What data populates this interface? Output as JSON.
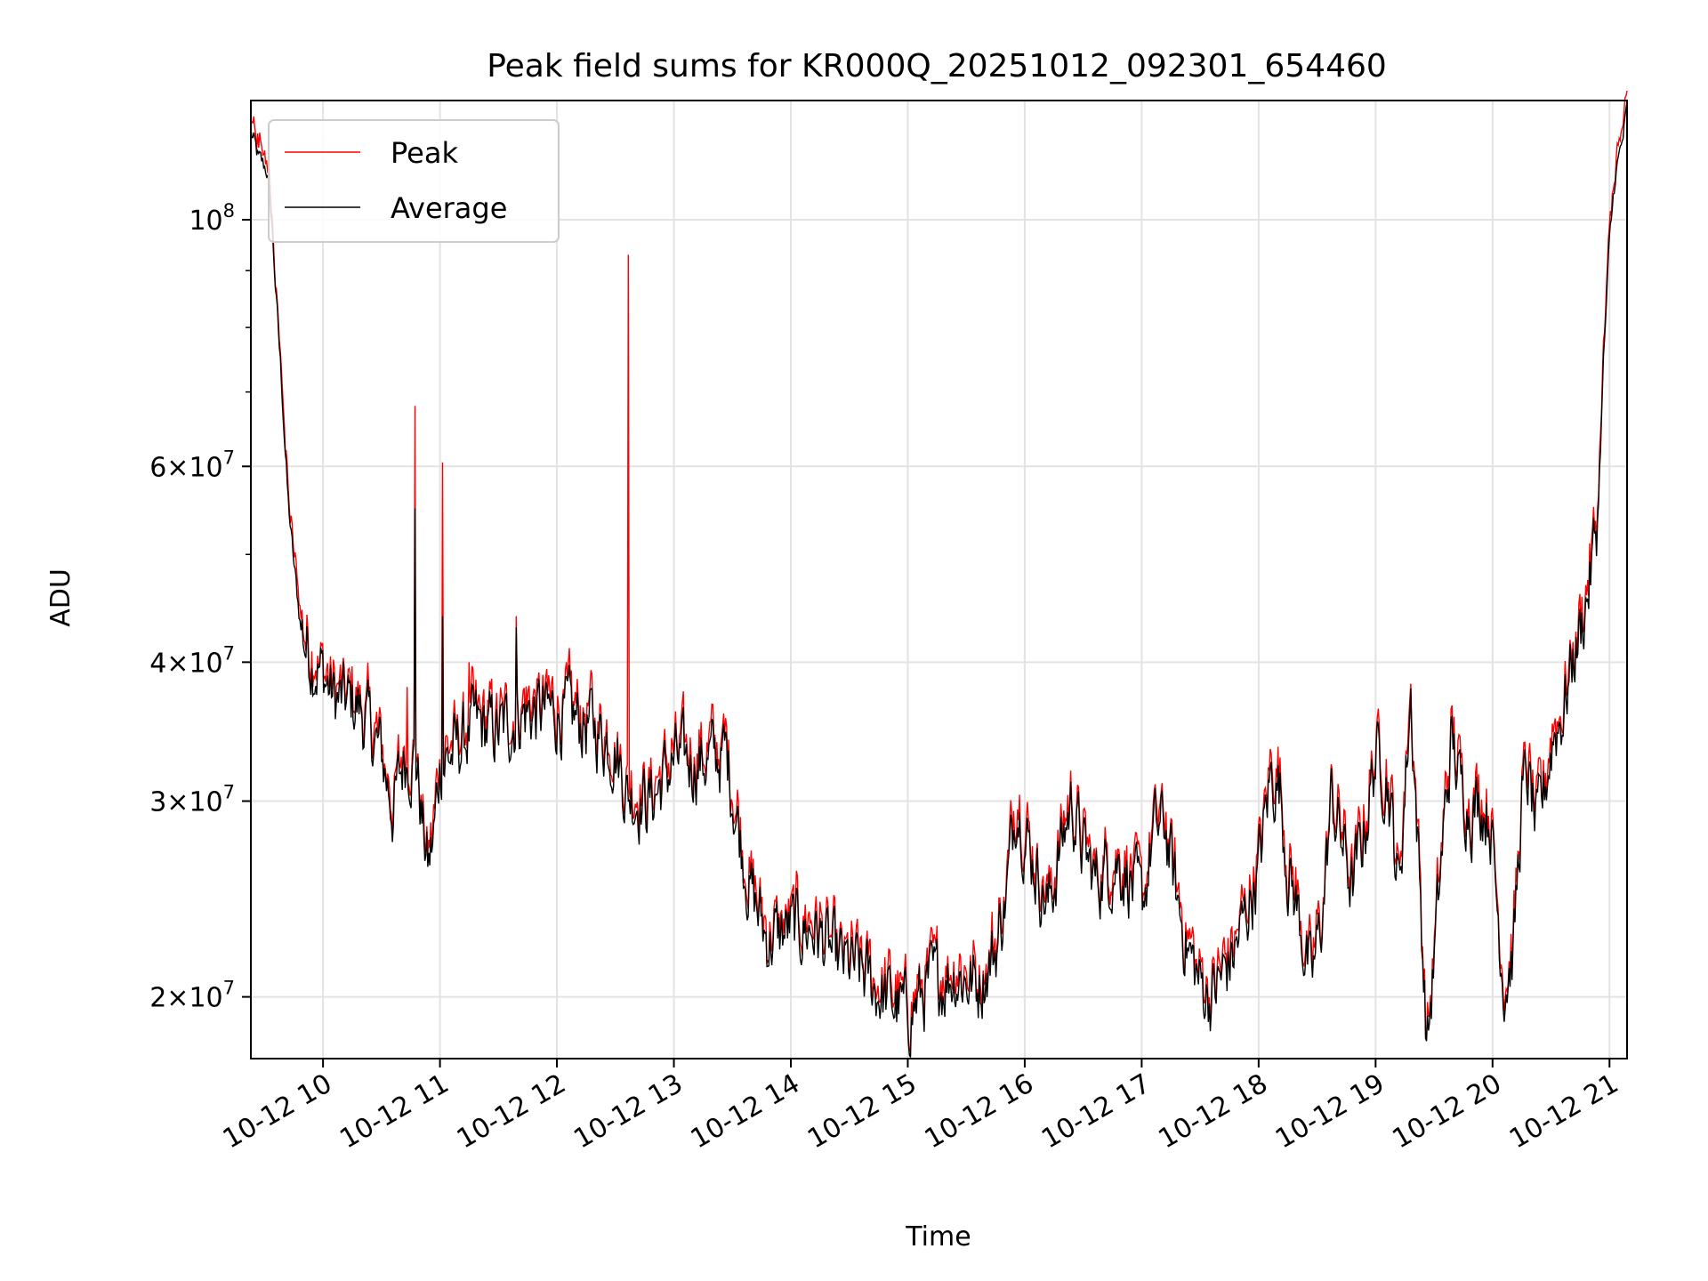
{
  "chart_data": {
    "type": "line",
    "title": "Peak field sums for KR000Q_20251012_092301_654460",
    "xlabel": "Time",
    "ylabel": "ADU",
    "yscale": "log",
    "xlim_hours": [
      9.383,
      21.15
    ],
    "ylim": [
      17600000,
      128000000
    ],
    "grid": true,
    "legend_position": "upper-left",
    "x_ticks": [
      {
        "value": 10,
        "label": "10-12 10"
      },
      {
        "value": 11,
        "label": "10-12 11"
      },
      {
        "value": 12,
        "label": "10-12 12"
      },
      {
        "value": 13,
        "label": "10-12 13"
      },
      {
        "value": 14,
        "label": "10-12 14"
      },
      {
        "value": 15,
        "label": "10-12 15"
      },
      {
        "value": 16,
        "label": "10-12 16"
      },
      {
        "value": 17,
        "label": "10-12 17"
      },
      {
        "value": 18,
        "label": "10-12 18"
      },
      {
        "value": 19,
        "label": "10-12 19"
      },
      {
        "value": 20,
        "label": "10-12 20"
      },
      {
        "value": 21,
        "label": "10-12 21"
      }
    ],
    "y_ticks": [
      {
        "value": 20000000,
        "mant": "2",
        "exp": "7"
      },
      {
        "value": 30000000,
        "mant": "3",
        "exp": "7"
      },
      {
        "value": 40000000,
        "mant": "4",
        "exp": "7"
      },
      {
        "value": 60000000,
        "mant": "6",
        "exp": "7"
      },
      {
        "value": 100000000,
        "mant": "",
        "exp": "8"
      }
    ],
    "y_minor_ticks": [
      50000000,
      70000000,
      80000000,
      90000000
    ],
    "series": [
      {
        "name": "Peak",
        "color": "#ff0000",
        "spikes": [
          [
            10.72,
            38000000
          ],
          [
            10.79,
            68000000
          ],
          [
            11.02,
            60500000
          ],
          [
            11.25,
            40000000
          ],
          [
            11.65,
            44000000
          ],
          [
            12.1,
            40000000
          ],
          [
            12.61,
            93000000
          ]
        ]
      },
      {
        "name": "Average",
        "color": "#000000",
        "spikes": [
          [
            10.79,
            55000000
          ],
          [
            11.02,
            44000000
          ],
          [
            11.65,
            43000000
          ]
        ]
      }
    ],
    "baseline": [
      [
        9.383,
        120000000
      ],
      [
        9.45,
        113000000
      ],
      [
        9.52,
        111000000
      ],
      [
        9.56,
        100000000
      ],
      [
        9.6,
        85000000
      ],
      [
        9.65,
        70000000
      ],
      [
        9.7,
        56000000
      ],
      [
        9.75,
        49000000
      ],
      [
        9.8,
        44000000
      ],
      [
        9.85,
        41500000
      ],
      [
        9.9,
        40500000
      ],
      [
        10.0,
        39000000
      ],
      [
        10.1,
        37000000
      ],
      [
        10.3,
        36500000
      ],
      [
        10.5,
        33000000
      ],
      [
        10.6,
        29500000
      ],
      [
        10.7,
        33000000
      ],
      [
        10.8,
        32500000
      ],
      [
        10.85,
        28500000
      ],
      [
        10.9,
        26000000
      ],
      [
        10.95,
        28000000
      ],
      [
        11.0,
        32500000
      ],
      [
        11.1,
        33000000
      ],
      [
        11.3,
        35000000
      ],
      [
        11.5,
        34500000
      ],
      [
        11.7,
        36000000
      ],
      [
        12.0,
        36000000
      ],
      [
        12.3,
        35000000
      ],
      [
        12.5,
        33500000
      ],
      [
        12.6,
        30500000
      ],
      [
        12.8,
        30000000
      ],
      [
        13.0,
        32500000
      ],
      [
        13.2,
        32500000
      ],
      [
        13.45,
        33000000
      ],
      [
        13.55,
        28500000
      ],
      [
        13.65,
        25000000
      ],
      [
        13.8,
        22500000
      ],
      [
        14.0,
        23000000
      ],
      [
        14.2,
        23000000
      ],
      [
        14.4,
        21500000
      ],
      [
        14.6,
        21000000
      ],
      [
        14.8,
        20000000
      ],
      [
        15.0,
        19300000
      ],
      [
        15.2,
        20500000
      ],
      [
        15.4,
        21000000
      ],
      [
        15.6,
        20500000
      ],
      [
        15.75,
        22000000
      ],
      [
        15.85,
        25000000
      ],
      [
        15.93,
        30500000
      ],
      [
        16.0,
        28000000
      ],
      [
        16.1,
        26000000
      ],
      [
        16.2,
        24000000
      ],
      [
        16.3,
        27000000
      ],
      [
        16.4,
        30000000
      ],
      [
        16.5,
        27000000
      ],
      [
        16.6,
        25500000
      ],
      [
        16.8,
        26500000
      ],
      [
        16.9,
        25500000
      ],
      [
        17.0,
        24000000
      ],
      [
        17.1,
        28000000
      ],
      [
        17.2,
        28500000
      ],
      [
        17.3,
        24500000
      ],
      [
        17.4,
        22000000
      ],
      [
        17.5,
        20500000
      ],
      [
        17.6,
        20000000
      ],
      [
        17.8,
        22000000
      ],
      [
        18.0,
        26000000
      ],
      [
        18.1,
        31500000
      ],
      [
        18.18,
        31000000
      ],
      [
        18.25,
        26000000
      ],
      [
        18.35,
        23500000
      ],
      [
        18.45,
        20500000
      ],
      [
        18.55,
        24000000
      ],
      [
        18.62,
        30000000
      ],
      [
        18.7,
        28000000
      ],
      [
        18.8,
        25000000
      ],
      [
        18.9,
        28000000
      ],
      [
        19.0,
        33000000
      ],
      [
        19.1,
        31500000
      ],
      [
        19.2,
        25000000
      ],
      [
        19.3,
        37500000
      ],
      [
        19.38,
        25000000
      ],
      [
        19.44,
        18000000
      ],
      [
        19.5,
        21500000
      ],
      [
        19.58,
        28000000
      ],
      [
        19.65,
        34000000
      ],
      [
        19.72,
        31000000
      ],
      [
        19.82,
        29500000
      ],
      [
        19.9,
        30000000
      ],
      [
        19.98,
        29000000
      ],
      [
        20.05,
        23500000
      ],
      [
        20.1,
        20500000
      ],
      [
        20.18,
        22000000
      ],
      [
        20.25,
        30000000
      ],
      [
        20.3,
        31500000
      ],
      [
        20.38,
        28000000
      ],
      [
        20.45,
        31000000
      ],
      [
        20.52,
        34500000
      ],
      [
        20.6,
        36000000
      ],
      [
        20.68,
        40000000
      ],
      [
        20.76,
        43000000
      ],
      [
        20.84,
        48000000
      ],
      [
        20.9,
        54000000
      ],
      [
        20.95,
        75000000
      ],
      [
        21.0,
        95000000
      ],
      [
        21.05,
        110000000
      ],
      [
        21.1,
        116000000
      ],
      [
        21.15,
        125000000
      ]
    ]
  }
}
